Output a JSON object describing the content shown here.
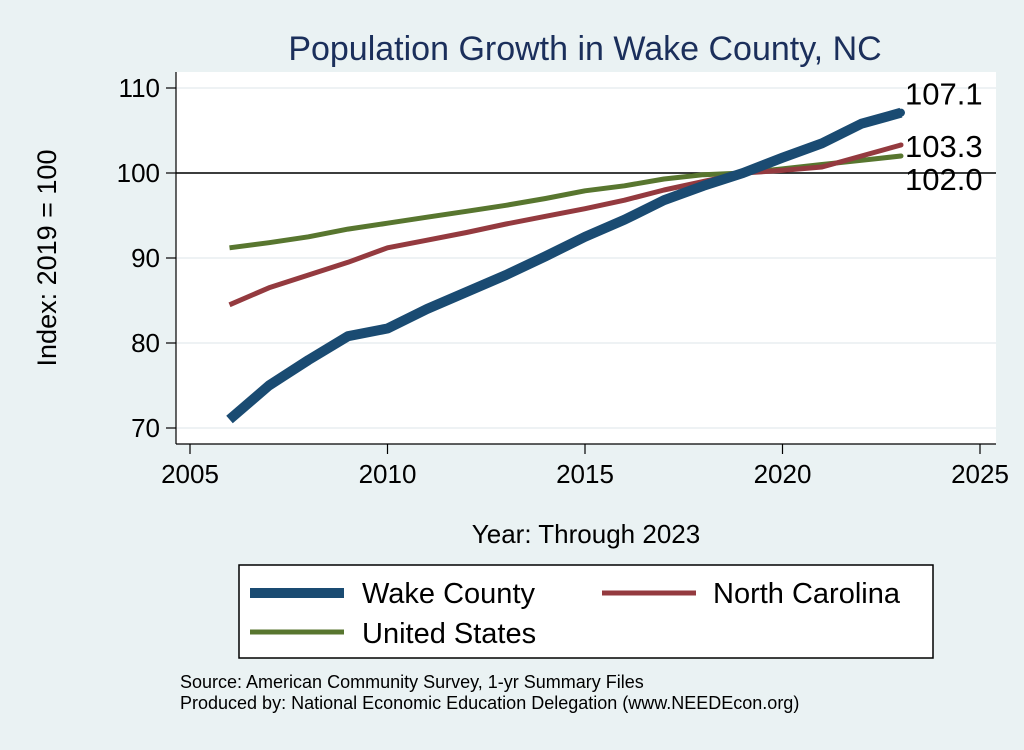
{
  "chart_data": {
    "type": "line",
    "title": "Population Growth in Wake County, NC",
    "xlabel": "Year: Through 2023",
    "ylabel": "Index: 2019 = 100",
    "xlim": [
      2005,
      2025
    ],
    "ylim": [
      68,
      112
    ],
    "x_ticks": [
      2005,
      2010,
      2015,
      2020,
      2025
    ],
    "y_ticks": [
      70,
      80,
      90,
      100,
      110
    ],
    "reference_line": 100,
    "x": [
      2006,
      2007,
      2008,
      2009,
      2010,
      2011,
      2012,
      2013,
      2014,
      2015,
      2016,
      2017,
      2018,
      2019,
      2020,
      2021,
      2022,
      2023
    ],
    "series": [
      {
        "name": "Wake  County",
        "color": "#1a4b72",
        "values": [
          71.0,
          75.0,
          78.0,
          80.8,
          81.7,
          84.0,
          86.0,
          88.0,
          90.2,
          92.5,
          94.5,
          96.8,
          98.5,
          100.0,
          101.8,
          103.5,
          105.8,
          107.1
        ],
        "end_label": "107.1"
      },
      {
        "name": "North Carolina",
        "color": "#943a3f",
        "values": [
          84.5,
          86.5,
          88.0,
          89.5,
          91.2,
          92.1,
          93.0,
          94.0,
          94.9,
          95.8,
          96.8,
          98.0,
          99.0,
          100.0,
          100.3,
          100.7,
          102.0,
          103.3
        ],
        "end_label": "103.3"
      },
      {
        "name": "United States",
        "color": "#58762f",
        "values": [
          91.2,
          91.8,
          92.5,
          93.4,
          94.1,
          94.8,
          95.5,
          96.2,
          97.0,
          97.9,
          98.5,
          99.3,
          99.8,
          100.0,
          100.5,
          101.0,
          101.5,
          102.0
        ],
        "end_label": "102.0"
      }
    ],
    "legend": {
      "placement": "bottom",
      "entries": [
        "Wake  County",
        "North Carolina",
        "United States"
      ]
    },
    "notes": [
      "Source: American Community Survey, 1-yr Summary Files",
      "Produced by: National Economic Education Delegation (www.NEEDEcon.org)"
    ]
  },
  "colors": {
    "background": "#eaf2f3",
    "plot_background": "#ffffff",
    "title": "#1b2f5b",
    "grid": "#e8eef0",
    "axis": "#000000"
  }
}
